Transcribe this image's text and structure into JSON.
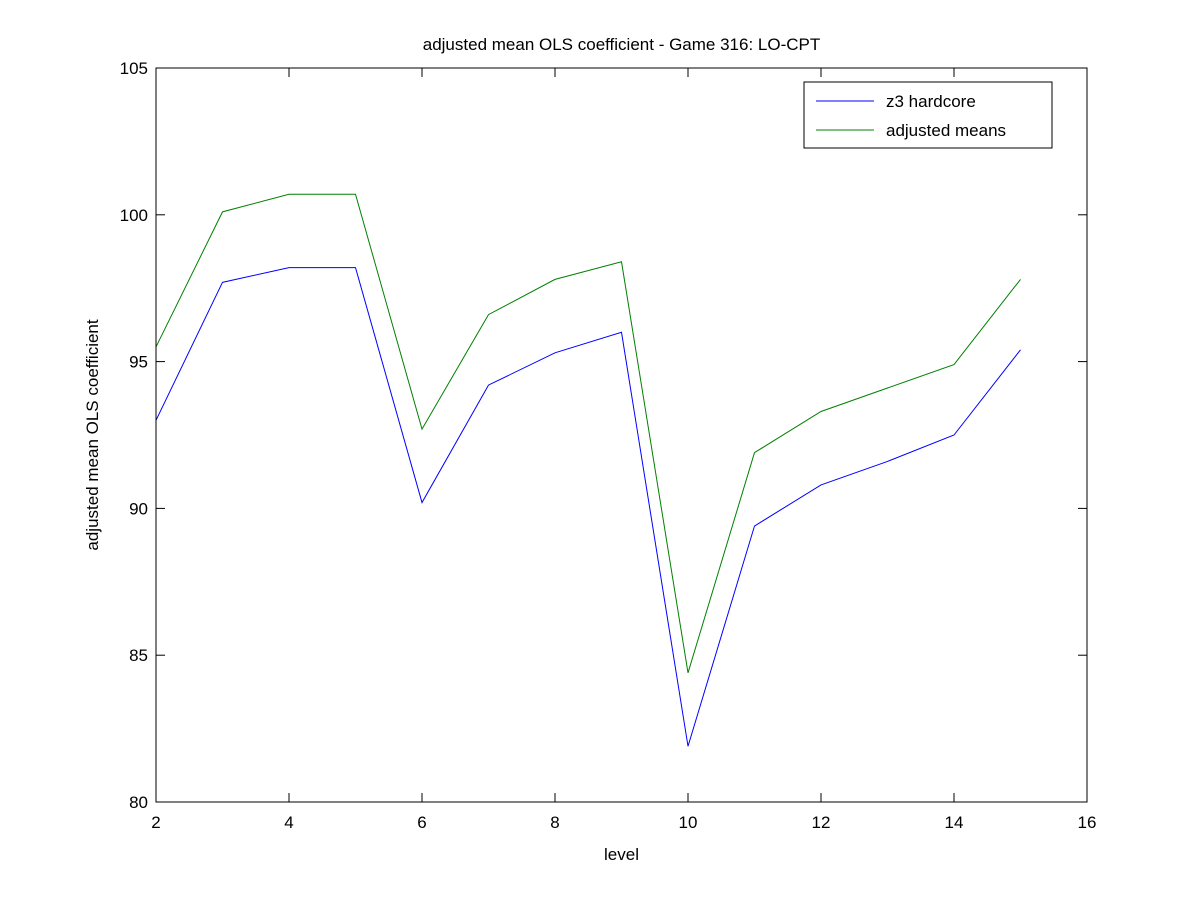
{
  "chart_data": {
    "type": "line",
    "title": "adjusted mean OLS coefficient - Game 316: LO-CPT",
    "xlabel": "level",
    "ylabel": "adjusted mean OLS coefficient",
    "xlim": [
      2,
      16
    ],
    "ylim": [
      80,
      105
    ],
    "xticks": [
      2,
      4,
      6,
      8,
      10,
      12,
      14,
      16
    ],
    "yticks": [
      80,
      85,
      90,
      95,
      100,
      105
    ],
    "grid": false,
    "legend_position": "top-right",
    "x": [
      2,
      3,
      4,
      5,
      6,
      7,
      8,
      9,
      10,
      11,
      12,
      13,
      14,
      15
    ],
    "series": [
      {
        "name": "z3 hardcore",
        "color": "#0000ff",
        "values": [
          93.0,
          97.7,
          98.2,
          98.2,
          90.2,
          94.2,
          95.3,
          96.0,
          81.9,
          89.4,
          90.8,
          91.6,
          92.5,
          95.4
        ]
      },
      {
        "name": "adjusted means",
        "color": "#008000",
        "values": [
          95.5,
          100.1,
          100.7,
          100.7,
          92.7,
          96.6,
          97.8,
          98.4,
          84.4,
          91.9,
          93.3,
          94.1,
          94.9,
          97.8
        ]
      }
    ]
  }
}
